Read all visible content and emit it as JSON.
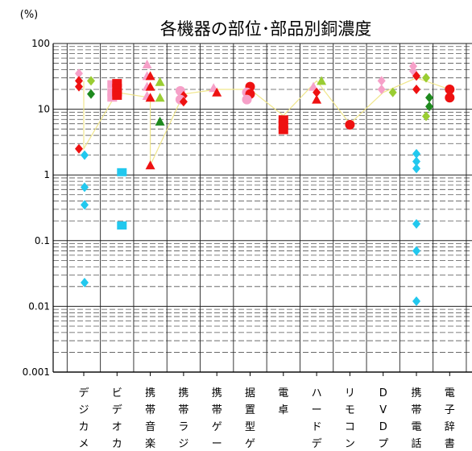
{
  "chart_data": {
    "type": "scatter",
    "title": "各機器の部位･部品別銅濃度",
    "ylabel": "(%)",
    "yscale": "log",
    "ylim": [
      0.001,
      100
    ],
    "y_ticks": [
      "100",
      "10",
      "1",
      "0.1",
      "0.01",
      "0.001"
    ],
    "categories": [
      [
        "デ",
        "ジ",
        "カ",
        "メ"
      ],
      [
        "ビ",
        "デ",
        "オ",
        "カ"
      ],
      [
        "携",
        "帯",
        "音",
        "楽"
      ],
      [
        "携",
        "帯",
        "ラ",
        "ジ"
      ],
      [
        "携",
        "帯",
        "ゲ",
        "ー"
      ],
      [
        "据",
        "置",
        "型",
        "ゲ"
      ],
      [
        "電",
        "卓"
      ],
      [
        "ハ",
        "ー",
        "ド",
        "デ"
      ],
      [
        "リ",
        "モ",
        "コ",
        "ン"
      ],
      [
        "D",
        "V",
        "D",
        "プ"
      ],
      [
        "携",
        "帯",
        "電",
        "話"
      ],
      [
        "電",
        "子",
        "辞",
        "書"
      ]
    ],
    "colors": {
      "red": "#ee1111",
      "pink": "#f6a0c8",
      "cyan": "#22c8ee",
      "green": "#1e8a1e",
      "lightgreen": "#9acd32",
      "line": "#f0e68c",
      "grid": "#555555"
    },
    "trend_line": [
      {
        "cat": 0,
        "y": 27
      },
      {
        "cat": 0,
        "y": 2.5
      },
      {
        "cat": 1,
        "y": 18
      },
      {
        "cat": 2,
        "y": 15
      },
      {
        "cat": 2,
        "y": 1.4
      },
      {
        "cat": 3,
        "y": 17
      },
      {
        "cat": 4,
        "y": 20
      },
      {
        "cat": 5,
        "y": 20
      },
      {
        "cat": 6,
        "y": 8
      },
      {
        "cat": 7,
        "y": 27
      },
      {
        "cat": 8,
        "y": 6
      },
      {
        "cat": 9,
        "y": 18
      },
      {
        "cat": 10,
        "y": 30
      },
      {
        "cat": 11,
        "y": 20
      }
    ],
    "points": [
      {
        "cat": 0,
        "dx": -6,
        "y": 35,
        "shape": "diamond",
        "color": "pink"
      },
      {
        "cat": 0,
        "dx": -6,
        "y": 27,
        "shape": "diamond",
        "color": "red"
      },
      {
        "cat": 0,
        "dx": -6,
        "y": 22,
        "shape": "diamond",
        "color": "red"
      },
      {
        "cat": 0,
        "dx": -6,
        "y": 2.5,
        "shape": "diamond",
        "color": "red"
      },
      {
        "cat": 0,
        "dx": 1,
        "y": 2.0,
        "shape": "diamond",
        "color": "cyan"
      },
      {
        "cat": 0,
        "dx": 1,
        "y": 0.65,
        "shape": "diamond",
        "color": "cyan"
      },
      {
        "cat": 0,
        "dx": 1,
        "y": 0.35,
        "shape": "diamond",
        "color": "cyan"
      },
      {
        "cat": 0,
        "dx": 1,
        "y": 0.023,
        "shape": "diamond",
        "color": "cyan"
      },
      {
        "cat": 0,
        "dx": 9,
        "y": 27,
        "shape": "diamond",
        "color": "lightgreen"
      },
      {
        "cat": 0,
        "dx": 9,
        "y": 17,
        "shape": "diamond",
        "color": "green"
      },
      {
        "cat": 1,
        "dx": -6,
        "y": 24,
        "shape": "square",
        "color": "pink"
      },
      {
        "cat": 1,
        "dx": -6,
        "y": 18,
        "shape": "square",
        "color": "pink"
      },
      {
        "cat": 1,
        "dx": -6,
        "y": 15,
        "shape": "square",
        "color": "pink"
      },
      {
        "cat": 1,
        "dx": 0,
        "y": 25,
        "shape": "square",
        "color": "red"
      },
      {
        "cat": 1,
        "dx": 0,
        "y": 21,
        "shape": "square",
        "color": "red"
      },
      {
        "cat": 1,
        "dx": 0,
        "y": 18,
        "shape": "square",
        "color": "red"
      },
      {
        "cat": 1,
        "dx": 0,
        "y": 16,
        "shape": "square",
        "color": "red"
      },
      {
        "cat": 1,
        "dx": 6,
        "y": 1.1,
        "shape": "square",
        "color": "cyan"
      },
      {
        "cat": 1,
        "dx": 6,
        "y": 0.17,
        "shape": "square",
        "color": "cyan"
      },
      {
        "cat": 2,
        "dx": -4,
        "y": 48,
        "shape": "triangle",
        "color": "pink"
      },
      {
        "cat": 2,
        "dx": -4,
        "y": 32,
        "shape": "triangle",
        "color": "pink"
      },
      {
        "cat": 2,
        "dx": -4,
        "y": 22,
        "shape": "triangle",
        "color": "pink"
      },
      {
        "cat": 2,
        "dx": -4,
        "y": 16,
        "shape": "triangle",
        "color": "pink"
      },
      {
        "cat": 2,
        "dx": 0,
        "y": 32,
        "shape": "triangle",
        "color": "red"
      },
      {
        "cat": 2,
        "dx": 0,
        "y": 22,
        "shape": "triangle",
        "color": "red"
      },
      {
        "cat": 2,
        "dx": 0,
        "y": 15,
        "shape": "triangle",
        "color": "red"
      },
      {
        "cat": 2,
        "dx": 0,
        "y": 1.4,
        "shape": "triangle",
        "color": "red"
      },
      {
        "cat": 2,
        "dx": 12,
        "y": 26,
        "shape": "triangle",
        "color": "lightgreen"
      },
      {
        "cat": 2,
        "dx": 12,
        "y": 15,
        "shape": "triangle",
        "color": "lightgreen"
      },
      {
        "cat": 2,
        "dx": 12,
        "y": 6.5,
        "shape": "triangle",
        "color": "green"
      },
      {
        "cat": 3,
        "dx": -4,
        "y": 19,
        "shape": "circle",
        "color": "pink"
      },
      {
        "cat": 3,
        "dx": 0,
        "y": 16,
        "shape": "diamond",
        "color": "red"
      },
      {
        "cat": 3,
        "dx": -4,
        "y": 14,
        "shape": "circle",
        "color": "pink"
      },
      {
        "cat": 3,
        "dx": 0,
        "y": 13,
        "shape": "diamond",
        "color": "red"
      },
      {
        "cat": 4,
        "dx": -4,
        "y": 21,
        "shape": "triangle",
        "color": "pink"
      },
      {
        "cat": 4,
        "dx": 0,
        "y": 18,
        "shape": "triangle",
        "color": "red"
      },
      {
        "cat": 5,
        "dx": 0,
        "y": 22,
        "shape": "circle",
        "color": "red"
      },
      {
        "cat": 5,
        "dx": -4,
        "y": 18,
        "shape": "circle",
        "color": "pink"
      },
      {
        "cat": 5,
        "dx": 0,
        "y": 17,
        "shape": "circle",
        "color": "red"
      },
      {
        "cat": 5,
        "dx": -4,
        "y": 14,
        "shape": "circle",
        "color": "pink"
      },
      {
        "cat": 6,
        "dx": 0,
        "y": 7.0,
        "shape": "square",
        "color": "red"
      },
      {
        "cat": 6,
        "dx": 0,
        "y": 5.8,
        "shape": "square",
        "color": "red"
      },
      {
        "cat": 6,
        "dx": 0,
        "y": 4.8,
        "shape": "square",
        "color": "red"
      },
      {
        "cat": 7,
        "dx": -4,
        "y": 22,
        "shape": "triangle",
        "color": "pink"
      },
      {
        "cat": 7,
        "dx": 0,
        "y": 18,
        "shape": "diamond",
        "color": "red"
      },
      {
        "cat": 7,
        "dx": 0,
        "y": 14,
        "shape": "triangle",
        "color": "red"
      },
      {
        "cat": 7,
        "dx": 6,
        "y": 27,
        "shape": "triangle",
        "color": "lightgreen"
      },
      {
        "cat": 8,
        "dx": 0,
        "y": 5.8,
        "shape": "circle",
        "color": "red"
      },
      {
        "cat": 9,
        "dx": -2,
        "y": 27,
        "shape": "diamond",
        "color": "pink"
      },
      {
        "cat": 9,
        "dx": -2,
        "y": 20,
        "shape": "diamond",
        "color": "pink"
      },
      {
        "cat": 9,
        "dx": 12,
        "y": 18,
        "shape": "diamond",
        "color": "lightgreen"
      },
      {
        "cat": 10,
        "dx": -4,
        "y": 45,
        "shape": "diamond",
        "color": "pink"
      },
      {
        "cat": 10,
        "dx": -4,
        "y": 38,
        "shape": "diamond",
        "color": "pink"
      },
      {
        "cat": 10,
        "dx": 0,
        "y": 32,
        "shape": "diamond",
        "color": "red"
      },
      {
        "cat": 10,
        "dx": 0,
        "y": 20,
        "shape": "diamond",
        "color": "red"
      },
      {
        "cat": 10,
        "dx": 0,
        "y": 2.1,
        "shape": "diamond",
        "color": "cyan"
      },
      {
        "cat": 10,
        "dx": 0,
        "y": 1.6,
        "shape": "diamond",
        "color": "cyan"
      },
      {
        "cat": 10,
        "dx": 0,
        "y": 1.25,
        "shape": "diamond",
        "color": "cyan"
      },
      {
        "cat": 10,
        "dx": 0,
        "y": 0.18,
        "shape": "diamond",
        "color": "cyan"
      },
      {
        "cat": 10,
        "dx": 0,
        "y": 0.07,
        "shape": "diamond",
        "color": "cyan"
      },
      {
        "cat": 10,
        "dx": 0,
        "y": 0.012,
        "shape": "diamond",
        "color": "cyan"
      },
      {
        "cat": 10,
        "dx": 12,
        "y": 30,
        "shape": "diamond",
        "color": "lightgreen"
      },
      {
        "cat": 10,
        "dx": 16,
        "y": 15,
        "shape": "diamond",
        "color": "green"
      },
      {
        "cat": 10,
        "dx": 16,
        "y": 11,
        "shape": "diamond",
        "color": "green"
      },
      {
        "cat": 10,
        "dx": 12,
        "y": 7.8,
        "shape": "diamond",
        "color": "lightgreen"
      },
      {
        "cat": 11,
        "dx": 0,
        "y": 20,
        "shape": "circle",
        "color": "red"
      },
      {
        "cat": 11,
        "dx": 0,
        "y": 15,
        "shape": "circle",
        "color": "red"
      }
    ]
  }
}
